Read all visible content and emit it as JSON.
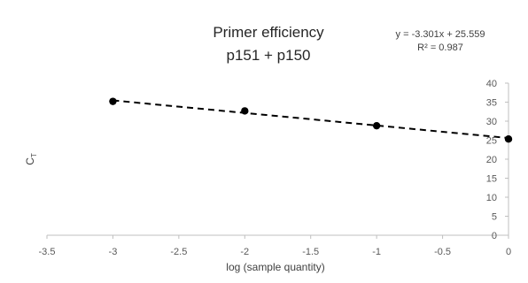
{
  "chart_data": {
    "type": "scatter",
    "title_line1": "Primer efficiency",
    "title_line2": "p151 + p150",
    "xlabel": "log (sample quantity)",
    "ylabel_main": "C",
    "ylabel_sub": "T",
    "xlim": [
      -3.5,
      0
    ],
    "ylim": [
      0,
      40
    ],
    "x_ticks": [
      -3.5,
      -3,
      -2.5,
      -2,
      -1.5,
      -1,
      -0.5,
      0
    ],
    "y_ticks": [
      0,
      5,
      10,
      15,
      20,
      25,
      30,
      35,
      40
    ],
    "y_axis_position": "right",
    "grid": false,
    "points": [
      {
        "x": -3,
        "y": 35.2
      },
      {
        "x": -2,
        "y": 32.7
      },
      {
        "x": -1,
        "y": 28.8
      },
      {
        "x": 0,
        "y": 25.3
      }
    ],
    "trendline": {
      "slope": -3.301,
      "intercept": 25.559,
      "style": "dashed",
      "equation": "y = -3.301x + 25.559",
      "r_squared_label": "R² = 0.987"
    },
    "colors": {
      "points": "#000000",
      "trendline": "#000000",
      "axis": "#bfbfbf"
    }
  }
}
